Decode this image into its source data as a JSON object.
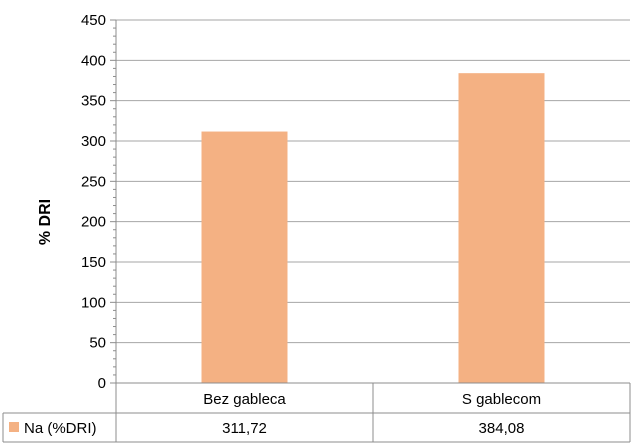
{
  "chart_data": {
    "type": "bar",
    "categories": [
      "Bez gableca",
      "S gablecom"
    ],
    "series": [
      {
        "name": "Na (%DRI)",
        "values": [
          311.72,
          384.08
        ],
        "display_values": [
          "311,72",
          "384,08"
        ],
        "color": "#F4B183"
      }
    ],
    "ylabel": "% DRI",
    "xlabel": "",
    "ylim": [
      0,
      450
    ],
    "yticks": [
      0,
      50,
      100,
      150,
      200,
      250,
      300,
      350,
      400,
      450
    ],
    "grid": true,
    "data_table": true
  },
  "colors": {
    "bar": "#F4B183",
    "grid": "#a6a6a6",
    "axis": "#8c8c8c"
  }
}
